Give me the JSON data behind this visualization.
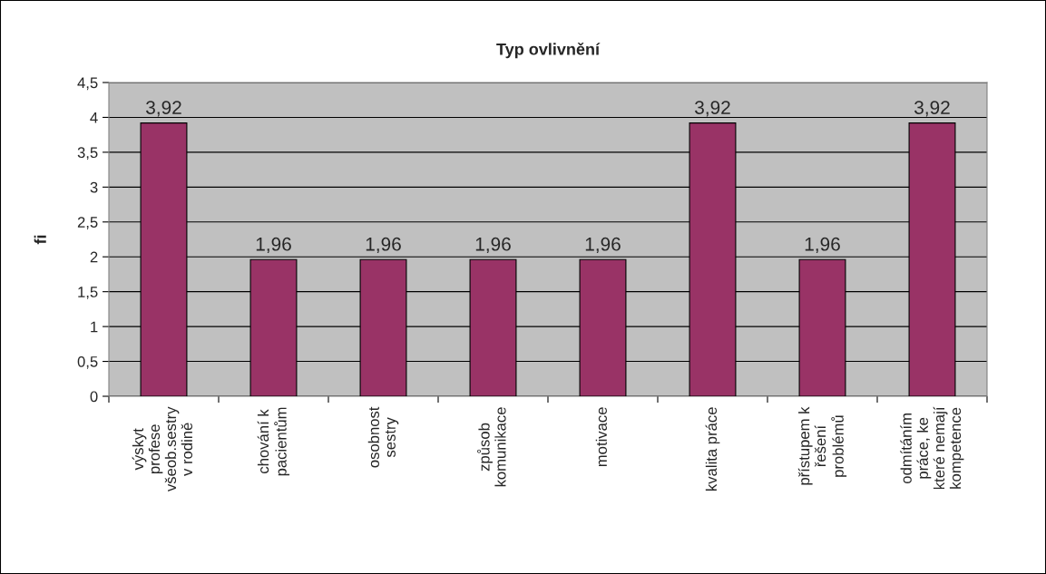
{
  "chart_data": {
    "type": "bar",
    "title": "Typ ovlivnění",
    "ylabel": "fi",
    "categories": [
      "výskyt\nprofese\nvšeob.sestry\nv rodině",
      "chování k\npacientům",
      "osobnost\nsestry",
      "způsob\nkomunikace",
      "motivace",
      "kvalita práce",
      "přístupem k\nřešení\nproblémů",
      "odmítáním\npráce, ke\nkteré nemají\nkompetence"
    ],
    "values": [
      3.92,
      1.96,
      1.96,
      1.96,
      1.96,
      3.92,
      1.96,
      3.92
    ],
    "value_labels": [
      "3,92",
      "1,96",
      "1,96",
      "1,96",
      "1,96",
      "3,92",
      "1,96",
      "3,92"
    ],
    "color": "#993366",
    "ylim": [
      0,
      4.5
    ],
    "yticks": [
      0,
      {
        "value": 0.5,
        "label": "0,5"
      },
      1,
      {
        "value": 1.5,
        "label": "1,5"
      },
      2,
      {
        "value": 2.5,
        "label": "2,5"
      },
      3,
      {
        "value": 3.5,
        "label": "3,5"
      },
      4,
      {
        "value": 4.5,
        "label": "4,5"
      }
    ],
    "grid": "y",
    "legend": false
  }
}
